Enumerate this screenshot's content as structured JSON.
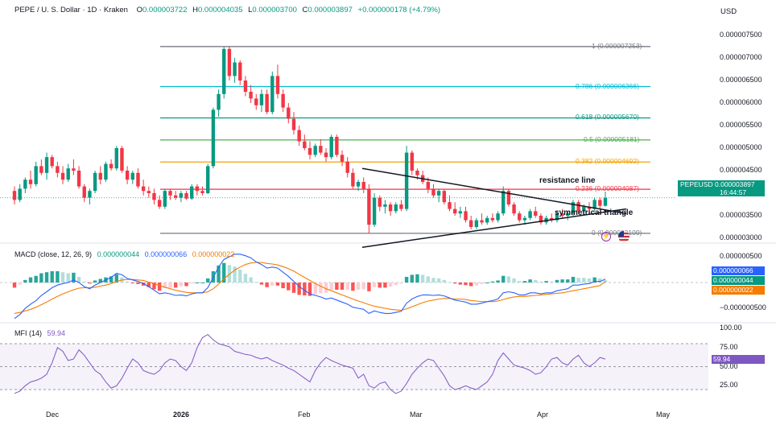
{
  "header": {
    "symbol": "PEPE / U. S. Dollar · 1D · Kraken",
    "open_label": "O",
    "open": "0.000003722",
    "high_label": "H",
    "high": "0.000004035",
    "low_label": "L",
    "low": "0.000003700",
    "close_label": "C",
    "close": "0.000003897",
    "change": "+0.000000178 (+4.79%)"
  },
  "currency": "USD",
  "colors": {
    "up": "#089981",
    "down": "#f23645",
    "macd": "#2962ff",
    "signal": "#f57c00",
    "mfi": "#7e57c2",
    "trendline": "#131722"
  },
  "price_axis": {
    "ticks": [
      "0.000007500",
      "0.000007000",
      "0.000006500",
      "0.000006000",
      "0.000005500",
      "0.000005000",
      "0.000004500",
      "0.000004000",
      "0.000003500",
      "0.000003000"
    ]
  },
  "fib_levels": [
    {
      "label": "1 (0.000007253)",
      "color": "#787b86"
    },
    {
      "label": "0.786 (0.000006366)",
      "color": "#00bcd4"
    },
    {
      "label": "0.618 (0.000005670)",
      "color": "#089981"
    },
    {
      "label": "0.5 (0.000005181)",
      "color": "#4caf50"
    },
    {
      "label": "0.382 (0.000004692)",
      "color": "#f5a300"
    },
    {
      "label": "0.236 (0.000004087)",
      "color": "#f23645"
    },
    {
      "label": "0 (0.000003109)",
      "color": "#787b86"
    }
  ],
  "last_price": {
    "symbol": "PEPEUSD",
    "value": "0.000003897",
    "countdown": "16:44:57"
  },
  "annotations": {
    "resistance": "resistance line",
    "triangle": "symmetrical triangle"
  },
  "macd": {
    "title": "MACD (close, 12, 26, 9)",
    "hist": "0.000000044",
    "macd": "0.000000066",
    "signal": "0.000000022",
    "ticks": [
      "0.000000500",
      "0.000000000",
      "−0.000000500"
    ],
    "tags": [
      {
        "text": "0.000000066",
        "color": "#2962ff"
      },
      {
        "text": "0.000000044",
        "color": "#089981"
      },
      {
        "text": "0.000000022",
        "color": "#f57c00"
      }
    ]
  },
  "mfi": {
    "title": "MFI (14)",
    "value": "59.94",
    "ticks": [
      "100.00",
      "75.00",
      "50.00",
      "25.00"
    ]
  },
  "x_axis": {
    "labels": [
      {
        "text": "Dec",
        "bold": false
      },
      {
        "text": "2026",
        "bold": true
      },
      {
        "text": "Feb",
        "bold": false
      },
      {
        "text": "Mar",
        "bold": false
      },
      {
        "text": "Apr",
        "bold": false
      },
      {
        "text": "May",
        "bold": false
      }
    ]
  },
  "chart_data": {
    "type": "candlestick",
    "x": [
      "2025-11-23",
      "2026-04-17"
    ],
    "ohlc": [
      [
        4.05,
        4.15,
        3.75,
        3.85
      ],
      [
        3.85,
        4.2,
        3.8,
        4.1
      ],
      [
        4.1,
        4.35,
        4.0,
        4.3
      ],
      [
        4.3,
        4.5,
        4.1,
        4.2
      ],
      [
        4.2,
        4.7,
        4.15,
        4.6
      ],
      [
        4.6,
        4.75,
        4.4,
        4.45
      ],
      [
        4.45,
        4.9,
        4.3,
        4.8
      ],
      [
        4.8,
        4.85,
        4.55,
        4.6
      ],
      [
        4.6,
        4.7,
        4.35,
        4.45
      ],
      [
        4.45,
        4.6,
        4.2,
        4.3
      ],
      [
        4.3,
        4.65,
        4.25,
        4.55
      ],
      [
        4.55,
        4.75,
        4.4,
        4.5
      ],
      [
        4.5,
        4.6,
        4.1,
        4.15
      ],
      [
        4.15,
        4.2,
        3.8,
        3.9
      ],
      [
        3.9,
        4.1,
        3.75,
        4.05
      ],
      [
        4.05,
        4.5,
        4.0,
        4.45
      ],
      [
        4.45,
        4.6,
        4.2,
        4.3
      ],
      [
        4.3,
        4.7,
        4.25,
        4.65
      ],
      [
        4.65,
        4.75,
        4.5,
        4.55
      ],
      [
        4.55,
        5.05,
        4.5,
        5.0
      ],
      [
        5.0,
        5.05,
        4.45,
        4.5
      ],
      [
        4.5,
        4.6,
        4.2,
        4.3
      ],
      [
        4.3,
        4.5,
        4.2,
        4.45
      ],
      [
        4.45,
        4.55,
        4.1,
        4.15
      ],
      [
        4.15,
        4.3,
        3.95,
        4.05
      ],
      [
        4.05,
        4.15,
        3.9,
        4.0
      ],
      [
        4.0,
        4.1,
        3.75,
        3.85
      ],
      [
        3.85,
        3.95,
        3.65,
        3.7
      ],
      [
        3.7,
        4.1,
        3.65,
        4.05
      ],
      [
        4.05,
        4.1,
        3.85,
        3.95
      ],
      [
        3.95,
        4.05,
        3.85,
        3.9
      ],
      [
        3.9,
        4.05,
        3.8,
        4.0
      ],
      [
        4.0,
        4.05,
        3.85,
        3.88
      ],
      [
        3.88,
        4.2,
        3.85,
        4.15
      ],
      [
        4.15,
        4.2,
        3.95,
        4.05
      ],
      [
        4.05,
        4.15,
        3.95,
        4.0
      ],
      [
        4.0,
        4.65,
        3.98,
        4.6
      ],
      [
        4.6,
        5.9,
        4.55,
        5.85
      ],
      [
        5.85,
        6.3,
        5.7,
        6.2
      ],
      [
        6.2,
        7.25,
        6.1,
        7.2
      ],
      [
        7.2,
        7.25,
        6.5,
        6.6
      ],
      [
        6.6,
        7.0,
        6.45,
        6.9
      ],
      [
        6.9,
        6.95,
        6.4,
        6.5
      ],
      [
        6.5,
        6.6,
        6.15,
        6.25
      ],
      [
        6.25,
        6.4,
        6.0,
        6.1
      ],
      [
        6.1,
        6.2,
        5.85,
        5.95
      ],
      [
        5.95,
        6.3,
        5.8,
        6.2
      ],
      [
        6.2,
        6.3,
        5.75,
        5.8
      ],
      [
        5.8,
        6.7,
        5.75,
        6.6
      ],
      [
        6.6,
        6.85,
        6.1,
        6.2
      ],
      [
        6.2,
        6.3,
        5.8,
        5.9
      ],
      [
        5.9,
        6.0,
        5.55,
        5.65
      ],
      [
        5.65,
        5.8,
        5.3,
        5.4
      ],
      [
        5.4,
        5.5,
        5.05,
        5.15
      ],
      [
        5.15,
        5.3,
        4.95,
        5.0
      ],
      [
        5.0,
        5.15,
        4.75,
        4.85
      ],
      [
        4.85,
        5.1,
        4.8,
        5.05
      ],
      [
        5.05,
        5.2,
        4.85,
        4.9
      ],
      [
        4.9,
        5.0,
        4.7,
        4.8
      ],
      [
        4.8,
        5.3,
        4.75,
        5.25
      ],
      [
        5.25,
        5.3,
        4.8,
        4.85
      ],
      [
        4.85,
        4.95,
        4.6,
        4.7
      ],
      [
        4.7,
        4.8,
        4.35,
        4.45
      ],
      [
        4.45,
        4.55,
        4.1,
        4.15
      ],
      [
        4.15,
        4.3,
        4.05,
        4.25
      ],
      [
        4.25,
        4.35,
        4.0,
        4.1
      ],
      [
        4.1,
        4.2,
        3.1,
        3.3
      ],
      [
        3.3,
        4.0,
        3.25,
        3.9
      ],
      [
        3.9,
        3.95,
        3.6,
        3.7
      ],
      [
        3.7,
        3.85,
        3.55,
        3.75
      ],
      [
        3.75,
        3.8,
        3.5,
        3.6
      ],
      [
        3.6,
        3.8,
        3.55,
        3.75
      ],
      [
        3.75,
        3.85,
        3.6,
        3.65
      ],
      [
        3.65,
        5.05,
        3.6,
        4.9
      ],
      [
        4.9,
        4.95,
        4.4,
        4.5
      ],
      [
        4.5,
        4.55,
        4.3,
        4.4
      ],
      [
        4.4,
        4.5,
        4.2,
        4.25
      ],
      [
        4.25,
        4.35,
        4.0,
        4.1
      ],
      [
        4.1,
        4.2,
        3.9,
        3.95
      ],
      [
        3.95,
        4.1,
        3.8,
        4.05
      ],
      [
        4.05,
        4.1,
        3.75,
        3.8
      ],
      [
        3.8,
        3.95,
        3.6,
        3.65
      ],
      [
        3.65,
        3.8,
        3.5,
        3.55
      ],
      [
        3.55,
        3.7,
        3.45,
        3.6
      ],
      [
        3.6,
        3.7,
        3.35,
        3.4
      ],
      [
        3.4,
        3.5,
        3.2,
        3.25
      ],
      [
        3.25,
        3.45,
        3.2,
        3.4
      ],
      [
        3.4,
        3.55,
        3.3,
        3.35
      ],
      [
        3.35,
        3.5,
        3.3,
        3.45
      ],
      [
        3.45,
        3.55,
        3.35,
        3.4
      ],
      [
        3.4,
        3.6,
        3.35,
        3.55
      ],
      [
        3.55,
        4.15,
        3.5,
        4.05
      ],
      [
        4.05,
        4.1,
        3.7,
        3.75
      ],
      [
        3.75,
        3.8,
        3.5,
        3.55
      ],
      [
        3.55,
        3.6,
        3.35,
        3.4
      ],
      [
        3.4,
        3.5,
        3.3,
        3.45
      ],
      [
        3.45,
        3.65,
        3.4,
        3.6
      ],
      [
        3.6,
        3.7,
        3.45,
        3.5
      ],
      [
        3.5,
        3.55,
        3.3,
        3.35
      ],
      [
        3.35,
        3.5,
        3.3,
        3.45
      ],
      [
        3.45,
        3.55,
        3.35,
        3.4
      ],
      [
        3.4,
        3.6,
        3.35,
        3.55
      ],
      [
        3.55,
        3.65,
        3.45,
        3.5
      ],
      [
        3.5,
        3.6,
        3.4,
        3.55
      ],
      [
        3.55,
        3.85,
        3.5,
        3.8
      ],
      [
        3.8,
        3.85,
        3.55,
        3.6
      ],
      [
        3.6,
        3.75,
        3.55,
        3.7
      ],
      [
        3.7,
        3.8,
        3.6,
        3.65
      ],
      [
        3.65,
        3.9,
        3.6,
        3.85
      ],
      [
        3.85,
        3.9,
        3.65,
        3.72
      ],
      [
        3.72,
        4.035,
        3.7,
        3.897
      ]
    ],
    "fibonacci": {
      "high": 7.253,
      "low": 3.109,
      "unit": "1e-6 USD"
    },
    "trendlines": {
      "resistance": {
        "from": [
          4.55,
          4.55
        ],
        "to": [
          3.55,
          3.55
        ]
      },
      "support": {
        "from": [
          2.8,
          2.8
        ],
        "to": [
          3.65,
          3.65
        ]
      }
    },
    "macd_series": {
      "macd": [
        -0.7,
        -0.62,
        -0.5,
        -0.42,
        -0.35,
        -0.25,
        -0.18,
        -0.1,
        -0.05,
        -0.02,
        0.0,
        0.05,
        0.0,
        -0.08,
        -0.12,
        -0.05,
        0.0,
        0.05,
        0.1,
        0.18,
        0.15,
        0.08,
        0.05,
        0.02,
        -0.02,
        -0.08,
        -0.15,
        -0.22,
        -0.2,
        -0.22,
        -0.25,
        -0.24,
        -0.26,
        -0.22,
        -0.2,
        -0.2,
        -0.1,
        0.1,
        0.3,
        0.45,
        0.5,
        0.55,
        0.55,
        0.52,
        0.48,
        0.4,
        0.35,
        0.28,
        0.3,
        0.28,
        0.2,
        0.12,
        0.02,
        -0.08,
        -0.15,
        -0.22,
        -0.25,
        -0.28,
        -0.32,
        -0.3,
        -0.34,
        -0.38,
        -0.42,
        -0.48,
        -0.5,
        -0.52,
        -0.6,
        -0.55,
        -0.58,
        -0.6,
        -0.6,
        -0.58,
        -0.56,
        -0.4,
        -0.32,
        -0.27,
        -0.24,
        -0.24,
        -0.25,
        -0.24,
        -0.26,
        -0.3,
        -0.34,
        -0.36,
        -0.38,
        -0.42,
        -0.42,
        -0.4,
        -0.37,
        -0.35,
        -0.32,
        -0.2,
        -0.18,
        -0.2,
        -0.24,
        -0.24,
        -0.2,
        -0.2,
        -0.22,
        -0.2,
        -0.2,
        -0.16,
        -0.14,
        -0.12,
        -0.05,
        -0.05,
        -0.03,
        -0.02,
        0.02,
        0.02,
        0.066
      ],
      "signal": [
        -0.6,
        -0.58,
        -0.55,
        -0.52,
        -0.48,
        -0.43,
        -0.38,
        -0.32,
        -0.27,
        -0.22,
        -0.18,
        -0.14,
        -0.11,
        -0.1,
        -0.1,
        -0.09,
        -0.07,
        -0.05,
        -0.02,
        0.02,
        0.05,
        0.06,
        0.06,
        0.05,
        0.04,
        0.01,
        -0.02,
        -0.06,
        -0.09,
        -0.12,
        -0.15,
        -0.17,
        -0.19,
        -0.2,
        -0.2,
        -0.2,
        -0.18,
        -0.12,
        -0.03,
        0.07,
        0.16,
        0.24,
        0.3,
        0.35,
        0.38,
        0.39,
        0.39,
        0.37,
        0.36,
        0.34,
        0.31,
        0.27,
        0.22,
        0.16,
        0.1,
        0.04,
        -0.02,
        -0.07,
        -0.12,
        -0.16,
        -0.2,
        -0.24,
        -0.28,
        -0.32,
        -0.36,
        -0.39,
        -0.43,
        -0.46,
        -0.48,
        -0.5,
        -0.52,
        -0.53,
        -0.54,
        -0.51,
        -0.47,
        -0.43,
        -0.39,
        -0.36,
        -0.34,
        -0.32,
        -0.31,
        -0.31,
        -0.32,
        -0.32,
        -0.33,
        -0.35,
        -0.36,
        -0.37,
        -0.37,
        -0.37,
        -0.36,
        -0.33,
        -0.3,
        -0.28,
        -0.27,
        -0.27,
        -0.26,
        -0.25,
        -0.24,
        -0.23,
        -0.22,
        -0.21,
        -0.2,
        -0.18,
        -0.16,
        -0.14,
        -0.12,
        -0.1,
        -0.08,
        -0.06,
        0.022
      ]
    },
    "mfi_series": [
      15,
      18,
      25,
      30,
      32,
      35,
      40,
      55,
      75,
      70,
      58,
      60,
      72,
      65,
      55,
      45,
      40,
      30,
      22,
      25,
      35,
      48,
      60,
      55,
      45,
      42,
      40,
      45,
      55,
      60,
      58,
      50,
      45,
      55,
      75,
      88,
      92,
      85,
      80,
      78,
      76,
      70,
      68,
      66,
      65,
      62,
      60,
      62,
      58,
      55,
      52,
      48,
      45,
      40,
      35,
      30,
      45,
      55,
      62,
      58,
      55,
      52,
      50,
      48,
      35,
      40,
      25,
      22,
      28,
      30,
      20,
      15,
      18,
      28,
      40,
      48,
      55,
      60,
      58,
      48,
      38,
      25,
      20,
      22,
      25,
      22,
      20,
      25,
      30,
      40,
      58,
      68,
      60,
      52,
      50,
      48,
      45,
      40,
      42,
      50,
      60,
      62,
      55,
      52,
      60,
      65,
      55,
      50,
      55,
      62,
      59.94
    ]
  }
}
